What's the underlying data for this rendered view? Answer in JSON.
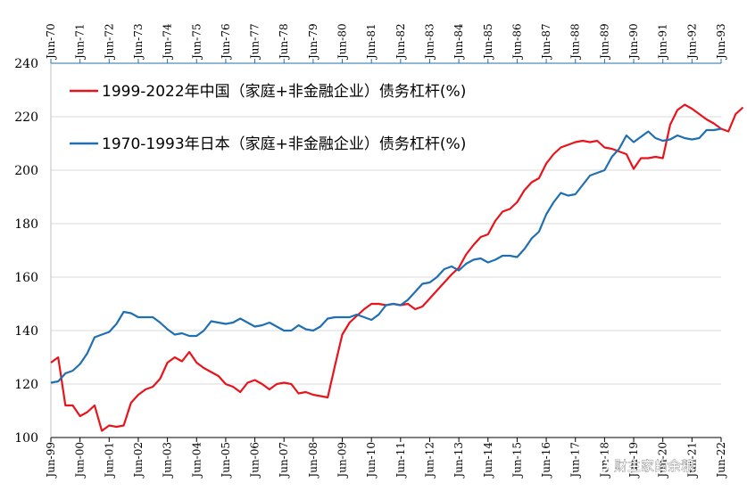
{
  "chart_data": {
    "type": "line",
    "ylim": [
      100,
      240
    ],
    "yticks": [
      100,
      120,
      140,
      160,
      180,
      200,
      220,
      240
    ],
    "grid": true,
    "legend_position": "top-left",
    "bottom_axis": {
      "labels": [
        "Jun-99",
        "Jun-00",
        "Jun-01",
        "Jun-02",
        "Jun-03",
        "Jun-04",
        "Jun-05",
        "Jun-06",
        "Jun-07",
        "Jun-08",
        "Jun-09",
        "Jun-10",
        "Jun-11",
        "Jun-12",
        "Jun-13",
        "Jun-14",
        "Jun-15",
        "Jun-16",
        "Jun-17",
        "Jun-18",
        "Jun-19",
        "Jun-20",
        "Jun-21",
        "Jun-22"
      ]
    },
    "top_axis": {
      "labels": [
        "Jun-70",
        "Jun-71",
        "Jun-72",
        "Jun-73",
        "Jun-74",
        "Jun-75",
        "Jun-76",
        "Jun-77",
        "Jun-78",
        "Jun-79",
        "Jun-80",
        "Jun-81",
        "Jun-82",
        "Jun-83",
        "Jun-84",
        "Jun-85",
        "Jun-86",
        "Jun-87",
        "Jun-88",
        "Jun-89",
        "Jun-90",
        "Jun-91",
        "Jun-92",
        "Jun-93"
      ]
    },
    "series": [
      {
        "name": "1999-2022年中国（家庭+非金融企业）债务杠杆(%)",
        "color": "#e8141c",
        "axis": "bottom",
        "x_start": "Jun-99",
        "x_step": "quarter",
        "values": [
          128,
          130,
          112,
          112,
          108,
          109.5,
          112,
          102.5,
          104.5,
          104,
          104.5,
          113,
          116,
          118,
          119,
          122,
          128,
          130,
          128.5,
          132,
          128,
          126,
          124.5,
          123,
          120,
          119,
          117,
          120.5,
          121.5,
          120,
          118,
          120,
          120.5,
          120,
          116.5,
          117,
          116,
          115.5,
          115,
          127,
          138.5,
          143,
          145.5,
          148,
          150,
          150,
          149.5,
          150,
          149.5,
          150,
          148,
          149,
          152,
          155,
          158,
          161,
          163.5,
          168.5,
          172,
          175,
          176,
          181,
          184.5,
          185.5,
          188,
          192.5,
          195.5,
          197,
          202.5,
          206,
          208.5,
          209.5,
          210.5,
          211,
          210.5,
          211,
          208.5,
          208,
          207,
          206,
          200.5,
          204.5,
          204.5,
          205,
          204.5,
          217,
          222.5,
          224.5,
          223,
          221,
          219,
          217.5,
          215.5,
          214.5,
          221,
          223.5
        ]
      },
      {
        "name": "1970-1993年日本（家庭+非金融企业）债务杠杆(%)",
        "color": "#1f6fb2",
        "axis": "top",
        "x_start": "Jun-70",
        "x_step": "quarter",
        "values": [
          120.5,
          121,
          124,
          125,
          127.5,
          131.5,
          137.5,
          138.5,
          139.5,
          142.5,
          147,
          146.5,
          145,
          145,
          145,
          143,
          140.5,
          138.5,
          139,
          138,
          138,
          140,
          143.5,
          143,
          142.5,
          143,
          144.5,
          143,
          141.5,
          142,
          143,
          141.5,
          140,
          140,
          142,
          140.5,
          140,
          141.5,
          144.5,
          145,
          145,
          145,
          146,
          145,
          144,
          146,
          149.5,
          150,
          149.5,
          151.5,
          154.5,
          157.5,
          158,
          160,
          163,
          164,
          162.5,
          165,
          166.5,
          167,
          165.5,
          166.5,
          168,
          168,
          167.5,
          170.5,
          174.5,
          177,
          183.5,
          188,
          191.5,
          190.5,
          191,
          194.5,
          198,
          199,
          200,
          205,
          208,
          213,
          210.5,
          212.5,
          214.5,
          212,
          211,
          211.5,
          213,
          212,
          211.5,
          212,
          215,
          215,
          215.5
        ]
      }
    ]
  },
  "watermark": "财主家的余粮"
}
